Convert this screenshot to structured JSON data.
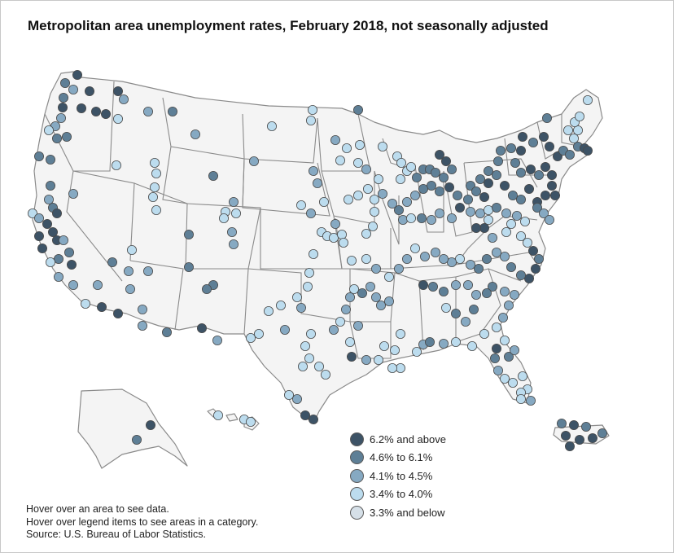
{
  "title": "Metropolitan area unemployment rates, February 2018, not seasonally adjusted",
  "legend": [
    {
      "label": "6.2% and above",
      "color": "#3d5366"
    },
    {
      "label": "4.6% to 6.1%",
      "color": "#5e7f96"
    },
    {
      "label": "4.1% to 4.5%",
      "color": "#86a9c2"
    },
    {
      "label": "3.4% to 4.0%",
      "color": "#bcdcee"
    },
    {
      "label": "3.3% and below",
      "color": "#d6e0e8"
    }
  ],
  "notes": {
    "hover_area": "Hover over an area to see data.",
    "hover_legend": "Hover over legend items to see areas in a category.",
    "source": "Source: U.S. Bureau of Labor Statistics."
  },
  "map_style": {
    "land_fill": "#f4f4f4",
    "border_color": "#8a8a8a",
    "marker_stroke": "#4a4a4a"
  }
}
